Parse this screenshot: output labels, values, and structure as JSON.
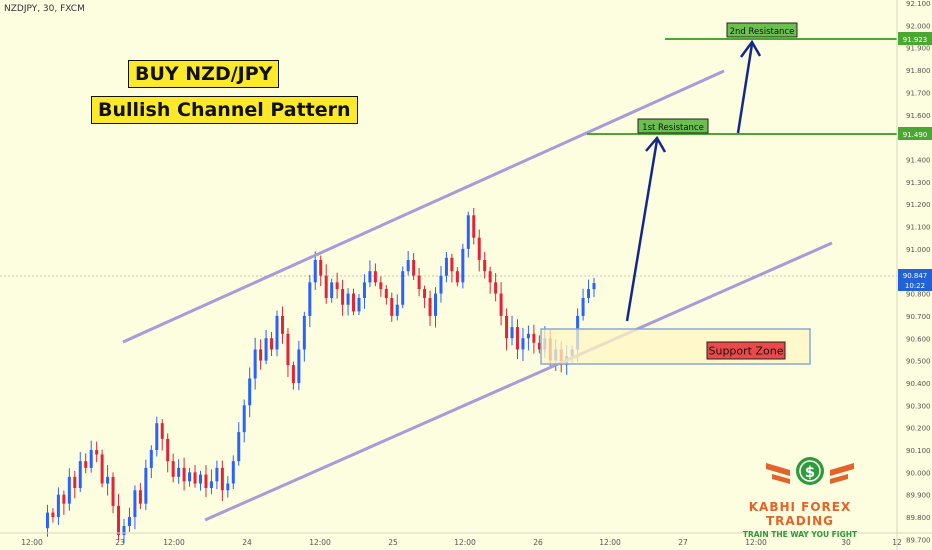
{
  "symbol": "NZDJPY, 30, FXCM",
  "title_line1": "BUY NZD/JPY",
  "title_line2": "Bullish Channel Pattern",
  "resistance1_label": "1st Resistance",
  "resistance2_label": "2nd Resistance",
  "support_label": "Support Zone",
  "logo_name": "KABHI FOREX TRADING",
  "logo_tagline": "TRAIN THE WAY YOU FIGHT",
  "logo_symbol": "$",
  "current_price": "90.847",
  "countdown": "10:22",
  "colors": {
    "background": "#fdfde0",
    "up_candle": "#2962ff",
    "down_candle": "#e0243a",
    "channel": "#a79bd9",
    "resistance_line": "#4aa832",
    "arrow": "#14288c",
    "support_fill": "#fff6c3",
    "support_border": "#8aa9d8"
  },
  "chart_data": {
    "type": "candlestick",
    "price_axis_ticks": [
      "92.100",
      "92.000",
      "91.900",
      "91.800",
      "91.700",
      "91.600",
      "91.500",
      "91.400",
      "91.300",
      "91.200",
      "91.100",
      "91.000",
      "90.900",
      "90.800",
      "90.700",
      "90.600",
      "90.500",
      "90.400",
      "90.300",
      "90.200",
      "90.100",
      "90.000",
      "89.900",
      "89.800",
      "89.700"
    ],
    "time_axis_ticks": [
      "12:00",
      "23",
      "12:00",
      "24",
      "12:00",
      "25",
      "12:00",
      "26",
      "12:00",
      "27",
      "12:00",
      "30",
      "12"
    ],
    "ylim": [
      89.68,
      92.12
    ],
    "levels": [
      {
        "name": "2nd Resistance",
        "price": 91.923,
        "label": "91.923"
      },
      {
        "name": "1st Resistance",
        "price": 91.49,
        "label": "91.490"
      }
    ],
    "support_zone": {
      "low": 90.45,
      "high": 90.6
    },
    "price_path": [
      89.75,
      89.82,
      89.8,
      89.9,
      89.86,
      89.98,
      89.93,
      90.05,
      90.02,
      90.1,
      90.08,
      89.95,
      89.98,
      89.85,
      89.72,
      89.76,
      89.8,
      89.92,
      89.86,
      90.02,
      90.1,
      90.22,
      90.15,
      90.05,
      89.98,
      90.02,
      89.96,
      90.0,
      89.95,
      89.99,
      89.93,
      89.96,
      90.02,
      89.92,
      89.95,
      90.05,
      90.18,
      90.3,
      90.42,
      90.55,
      90.5,
      90.6,
      90.55,
      90.7,
      90.62,
      90.48,
      90.4,
      90.55,
      90.7,
      90.85,
      90.95,
      90.88,
      90.78,
      90.85,
      90.82,
      90.75,
      90.8,
      90.72,
      90.78,
      90.85,
      90.9,
      90.85,
      90.82,
      90.78,
      90.7,
      90.75,
      90.9,
      90.95,
      90.88,
      90.82,
      90.78,
      90.7,
      90.8,
      90.88,
      90.96,
      90.9,
      90.85,
      91.0,
      91.15,
      91.05,
      90.95,
      90.9,
      90.85,
      90.8,
      90.7,
      90.6,
      90.65,
      90.55,
      90.6,
      90.62,
      90.58,
      90.55,
      90.6,
      90.5,
      90.55,
      90.48,
      90.52,
      90.55,
      90.7,
      90.78,
      90.82,
      90.847
    ]
  }
}
